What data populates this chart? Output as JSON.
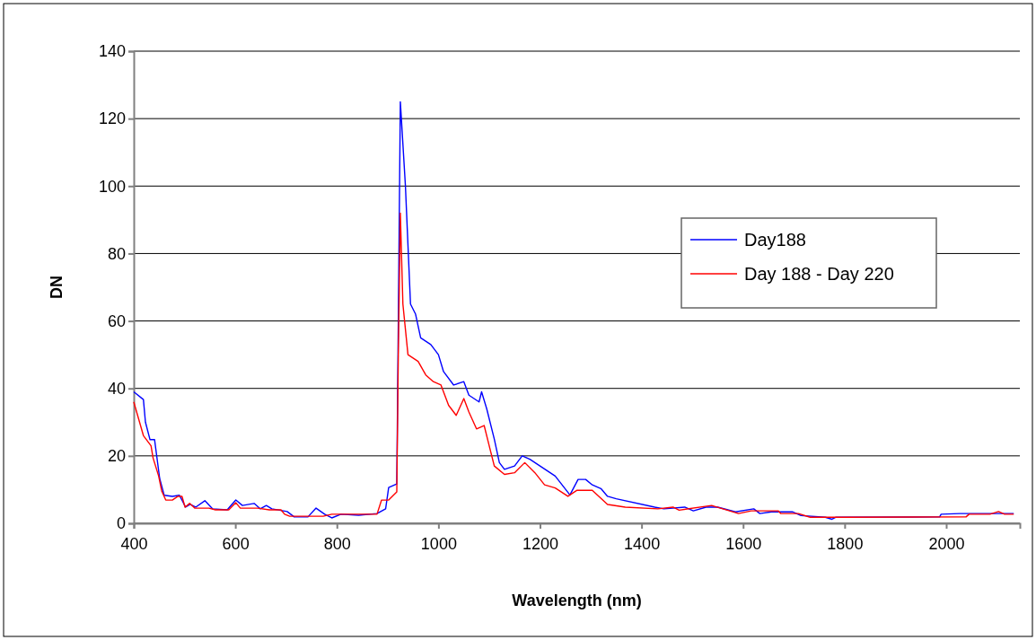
{
  "chart_data": {
    "type": "line",
    "xlabel": "Wavelength  (nm)",
    "ylabel": "DN",
    "xlim": [
      400,
      2145
    ],
    "xticks": [
      400,
      600,
      800,
      1000,
      1200,
      1400,
      1600,
      1800,
      2000
    ],
    "ylim": [
      0,
      140
    ],
    "yticks": [
      0,
      20,
      40,
      60,
      80,
      100,
      120,
      140
    ],
    "grid": "y",
    "legend": "right",
    "marker": "none",
    "line_style": "solid",
    "series": [
      {
        "name": "Day188",
        "color": "#0000ff",
        "x": [
          400,
          419,
          423,
          432,
          441,
          451,
          460,
          476,
          490,
          495,
          502,
          511,
          522,
          540,
          555,
          584,
          601,
          614,
          637,
          649,
          661,
          672,
          702,
          716,
          743,
          759,
          776,
          790,
          808,
          843,
          879,
          896,
          902,
          918,
          921,
          925,
          935,
          945,
          955,
          965,
          985,
          1000,
          1010,
          1030,
          1050,
          1060,
          1080,
          1085,
          1095,
          1110,
          1120,
          1130,
          1150,
          1165,
          1180,
          1200,
          1230,
          1259,
          1275,
          1290,
          1303,
          1320,
          1333,
          1350,
          1426,
          1444,
          1485,
          1502,
          1527,
          1550,
          1585,
          1621,
          1633,
          1656,
          1697,
          1714,
          1762,
          1775,
          1783,
          1987,
          1990,
          2027,
          2068,
          2133
        ],
        "values": [
          39,
          36.7,
          30,
          24.8,
          24.8,
          13.3,
          8.3,
          8,
          8.3,
          6.9,
          4.8,
          5.6,
          4.8,
          6.7,
          4.3,
          4,
          6.9,
          5.3,
          5.9,
          4.3,
          5.3,
          4.3,
          3.5,
          1.9,
          1.9,
          4.5,
          2.7,
          1.6,
          2.7,
          2.4,
          2.9,
          4.3,
          10.6,
          11.7,
          60,
          125,
          100,
          65,
          62,
          55,
          53,
          50,
          45,
          41,
          42,
          38,
          36,
          39,
          34,
          25,
          18,
          16,
          17,
          20,
          19,
          17,
          14,
          8.4,
          13,
          13,
          11.4,
          10.3,
          8,
          7.3,
          4.8,
          4.3,
          4.8,
          3.7,
          4.8,
          4.8,
          3.4,
          4.3,
          2.9,
          3.4,
          3.4,
          2.3,
          1.8,
          1.2,
          1.8,
          1.9,
          2.7,
          2.9,
          2.9,
          2.9
        ]
      },
      {
        "name": "Day 188 - Day 220",
        "color": "#ff0000",
        "x": [
          400,
          419,
          434,
          438,
          449,
          455,
          463,
          476,
          487,
          495,
          501,
          510,
          520,
          548,
          561,
          587,
          601,
          610,
          644,
          667,
          690,
          697,
          707,
          773,
          790,
          879,
          888,
          902,
          918,
          921,
          925,
          930,
          940,
          960,
          975,
          990,
          1005,
          1020,
          1035,
          1050,
          1060,
          1075,
          1090,
          1100,
          1110,
          1130,
          1150,
          1170,
          1190,
          1209,
          1230,
          1255,
          1273,
          1303,
          1333,
          1368,
          1432,
          1462,
          1474,
          1538,
          1591,
          1616,
          1669,
          1674,
          1709,
          1732,
          1798,
          2039,
          2045,
          2086,
          2103,
          2115,
          2133
        ],
        "values": [
          36,
          26,
          23,
          19.4,
          14,
          9.6,
          6.9,
          6.9,
          8,
          8,
          4.8,
          5.9,
          4.5,
          4.5,
          4,
          4,
          6.1,
          4.5,
          4.5,
          4,
          4,
          2.7,
          2.1,
          2.1,
          2.7,
          2.7,
          6.9,
          6.9,
          9.3,
          50,
          92,
          65,
          50,
          48,
          44,
          42,
          41,
          35,
          32,
          37,
          33,
          28,
          29,
          23,
          17,
          14.5,
          15,
          18,
          15,
          11.4,
          10.5,
          8,
          9.8,
          9.8,
          5.6,
          4.8,
          4.3,
          4.8,
          3.9,
          5.3,
          2.9,
          3.7,
          3.7,
          2.9,
          2.9,
          1.8,
          1.8,
          1.9,
          2.7,
          2.7,
          3.5,
          2.7,
          2.7
        ]
      }
    ]
  }
}
